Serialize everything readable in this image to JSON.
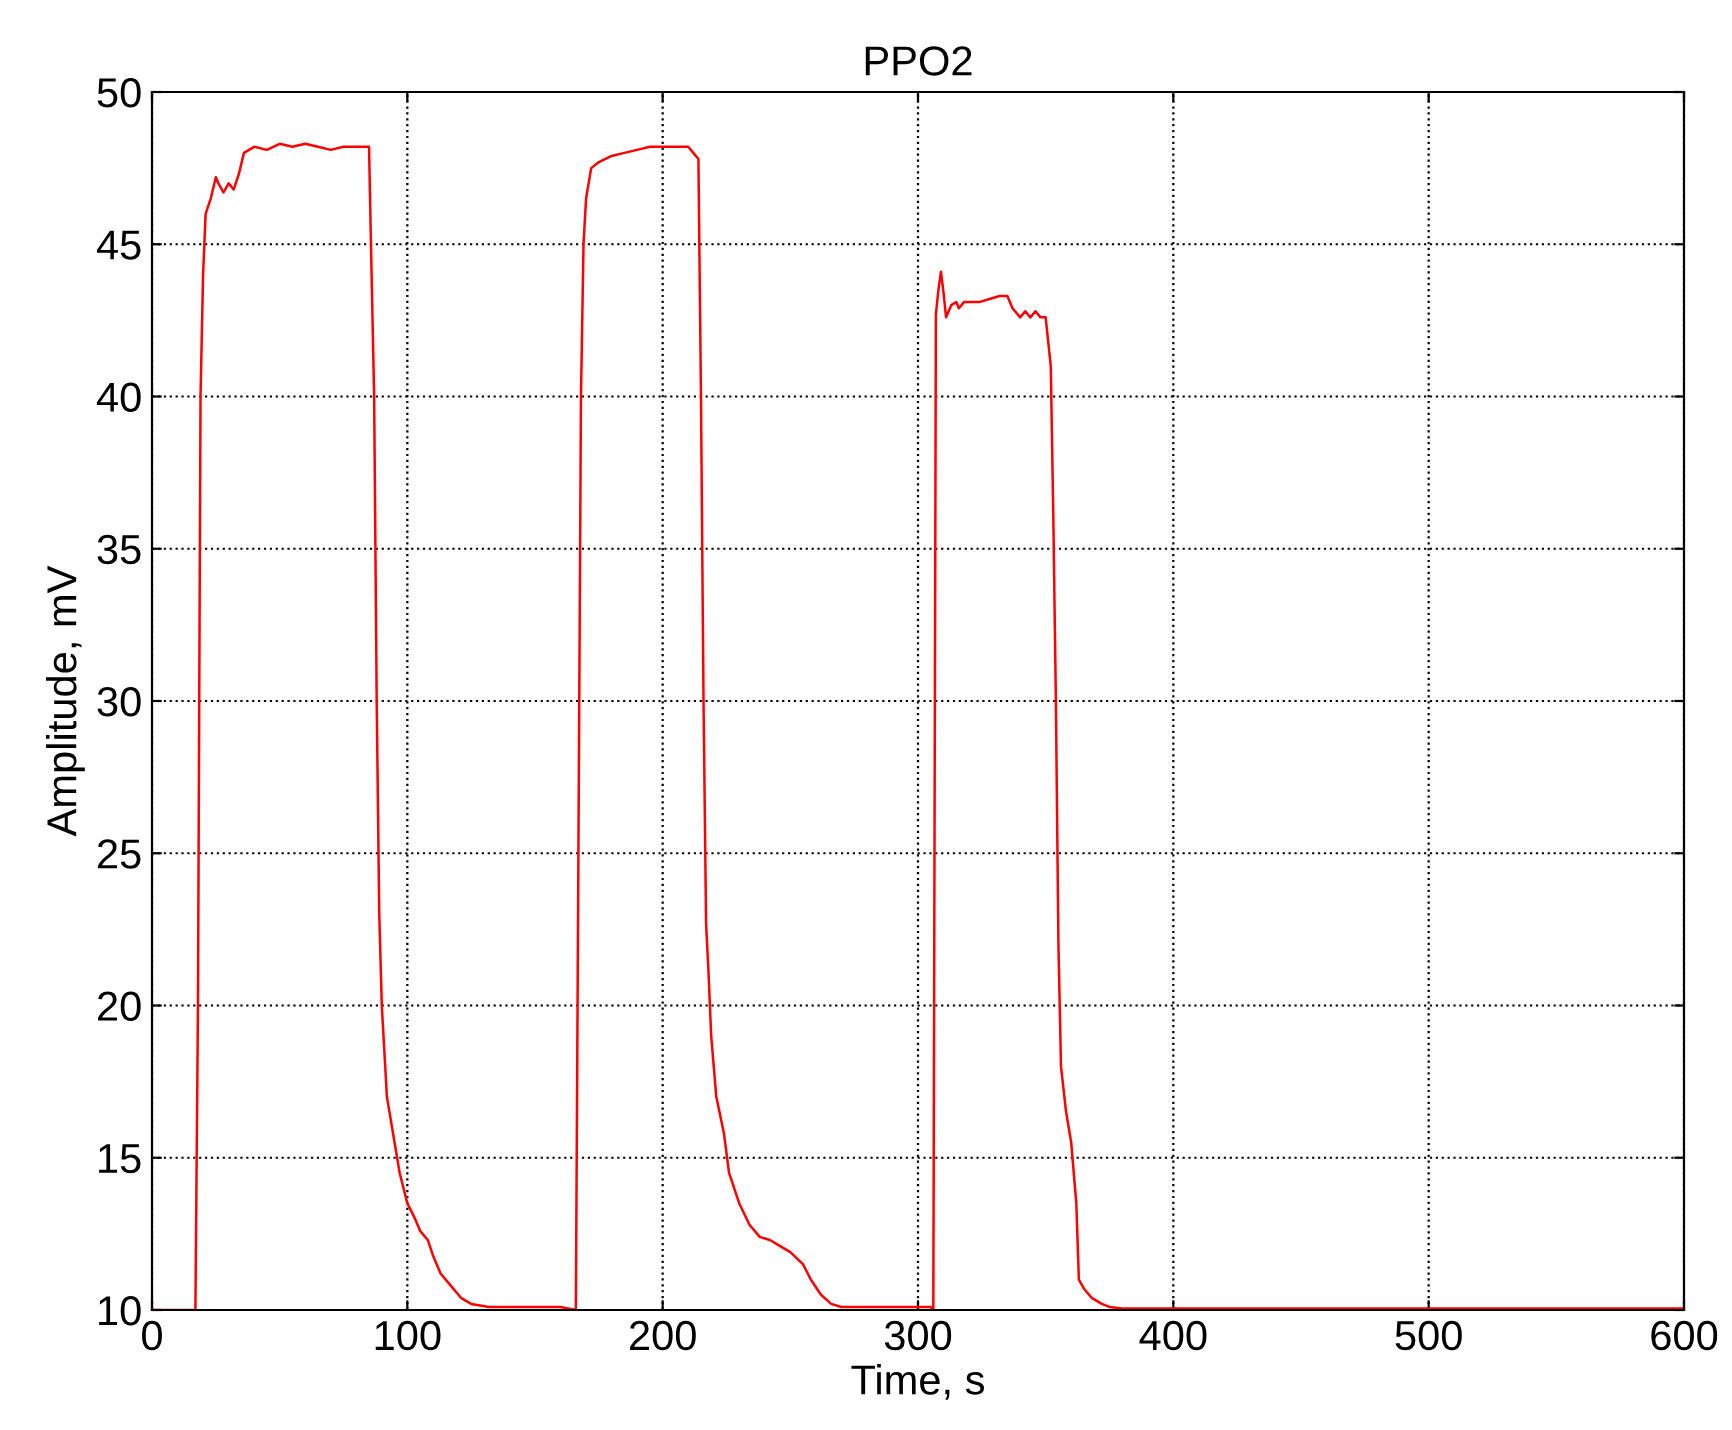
{
  "chart_data": {
    "type": "line",
    "title": "PPO2",
    "xlabel": "Time, s",
    "ylabel": "Amplitude, mV",
    "series": [
      {
        "color": "#ff0000",
        "x": [
          0,
          17,
          18,
          19,
          20,
          21,
          23,
          25,
          26,
          28,
          30,
          32,
          34,
          36,
          40,
          45,
          50,
          55,
          60,
          65,
          70,
          75,
          80,
          85,
          86,
          87,
          88,
          89,
          90,
          92,
          95,
          97,
          100,
          103,
          105,
          108,
          110,
          113,
          117,
          121,
          125,
          132,
          140,
          150,
          160,
          166,
          167,
          168,
          169,
          170,
          172,
          175,
          180,
          185,
          190,
          195,
          200,
          205,
          210,
          212,
          214,
          215,
          216,
          217,
          218,
          219,
          221,
          224,
          226,
          230,
          234,
          238,
          242,
          246,
          250,
          255,
          258,
          262,
          266,
          270,
          280,
          290,
          300,
          304,
          305,
          306,
          307,
          308,
          309,
          310,
          311,
          313,
          315,
          316,
          318,
          320,
          324,
          328,
          332,
          335,
          337,
          340,
          342,
          344,
          346,
          348,
          350,
          352,
          353,
          354,
          355,
          356,
          358,
          360,
          362,
          363,
          365,
          368,
          372,
          375,
          380,
          400,
          450,
          500,
          550,
          600
        ],
        "values": [
          10,
          10,
          20,
          40,
          44,
          46,
          46.5,
          47.2,
          47,
          46.7,
          47,
          46.8,
          47.3,
          48,
          48.2,
          48.1,
          48.3,
          48.2,
          48.3,
          48.2,
          48.1,
          48.2,
          48.2,
          48.2,
          44,
          40,
          30,
          23,
          20,
          17,
          15.5,
          14.5,
          13.5,
          13,
          12.6,
          12.3,
          11.8,
          11.2,
          10.8,
          10.4,
          10.2,
          10.1,
          10.1,
          10.1,
          10.1,
          10,
          25,
          40,
          45,
          46.5,
          47.5,
          47.7,
          47.9,
          48,
          48.1,
          48.2,
          48.2,
          48.2,
          48.2,
          48,
          47.8,
          40,
          30,
          22.7,
          21,
          19,
          17,
          15.8,
          14.5,
          13.5,
          12.8,
          12.4,
          12.3,
          12.1,
          11.9,
          11.5,
          11,
          10.5,
          10.2,
          10.1,
          10.1,
          10.1,
          10.1,
          10.1,
          10.1,
          10,
          42.7,
          43.5,
          44.1,
          43.4,
          42.6,
          43,
          43.1,
          42.9,
          43.1,
          43.1,
          43.1,
          43.2,
          43.3,
          43.3,
          42.9,
          42.6,
          42.8,
          42.6,
          42.8,
          42.6,
          42.6,
          41,
          36,
          30,
          22,
          18,
          16.5,
          15.5,
          13.5,
          11,
          10.7,
          10.4,
          10.2,
          10.1,
          10.05,
          10.05,
          10.05,
          10.05,
          10.05,
          10.05
        ]
      }
    ],
    "xlim": [
      0,
      600
    ],
    "ylim": [
      10,
      50
    ],
    "xticks": [
      0,
      100,
      200,
      300,
      400,
      500,
      600
    ],
    "yticks": [
      10,
      15,
      20,
      25,
      30,
      35,
      40,
      45,
      50
    ],
    "grid": true,
    "line_style": "solid",
    "marker": "none"
  }
}
